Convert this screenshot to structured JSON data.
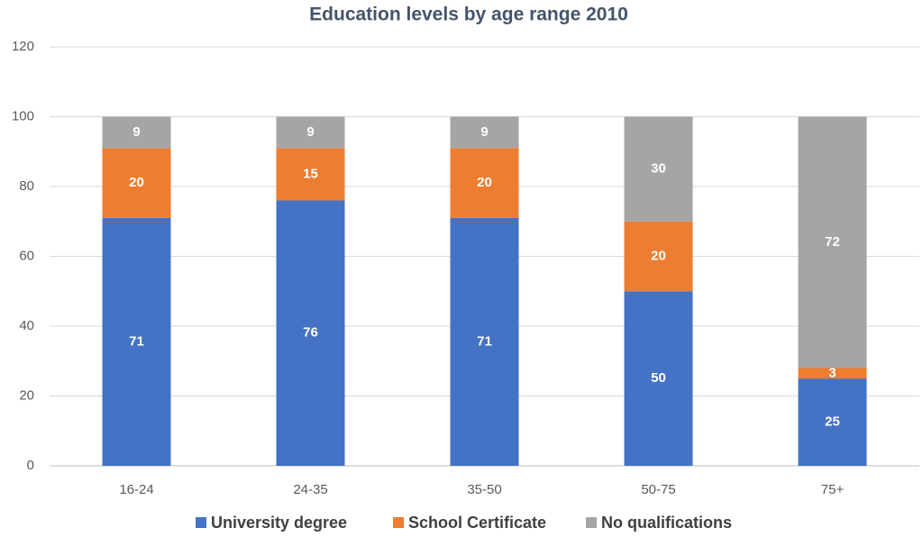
{
  "chart_data": {
    "type": "stacked_bar",
    "title": "Education levels by age range 2010",
    "categories": [
      "16-24",
      "24-35",
      "35-50",
      "50-75",
      "75+"
    ],
    "series": [
      {
        "name": "University degree",
        "color": "#4472c4",
        "values": [
          71,
          76,
          71,
          50,
          25
        ]
      },
      {
        "name": "School Certificate",
        "color": "#ed7d31",
        "values": [
          20,
          15,
          20,
          20,
          3
        ]
      },
      {
        "name": "No qualifications",
        "color": "#a5a5a5",
        "values": [
          9,
          9,
          9,
          30,
          72
        ]
      }
    ],
    "ylim": [
      0,
      120
    ],
    "yticks": [
      0,
      20,
      40,
      60,
      80,
      100,
      120
    ],
    "grid": true,
    "legend": "bottom"
  }
}
